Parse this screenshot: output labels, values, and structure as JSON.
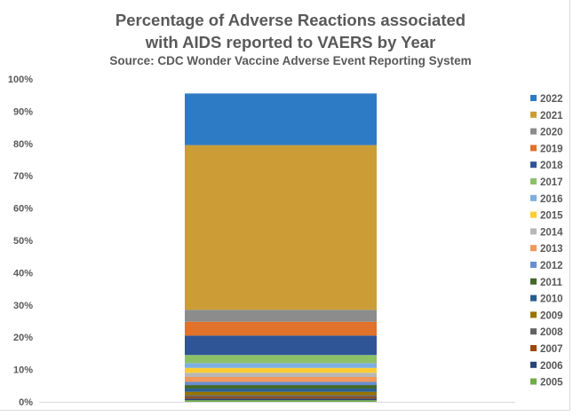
{
  "chart_data": {
    "type": "bar",
    "stacked": true,
    "percent_stacked": true,
    "title": "Percentage of Adverse Reactions associated",
    "title_line2": "with AIDS reported to VAERS by Year",
    "subtitle": "Source: CDC Wonder Vaccine Adverse Event Reporting System",
    "xlabel": "",
    "ylabel": "",
    "ylim": [
      0,
      100
    ],
    "yticks": [
      "0%",
      "10%",
      "20%",
      "30%",
      "40%",
      "50%",
      "60%",
      "70%",
      "80%",
      "90%",
      "100%"
    ],
    "grid": false,
    "legend_position": "right",
    "categories": [
      ""
    ],
    "series": [
      {
        "name": "2005",
        "values": [
          0.5
        ],
        "color": "#70ad47"
      },
      {
        "name": "2006",
        "values": [
          0.5
        ],
        "color": "#264478"
      },
      {
        "name": "2007",
        "values": [
          0.5
        ],
        "color": "#9e480e"
      },
      {
        "name": "2008",
        "values": [
          0.6
        ],
        "color": "#636363"
      },
      {
        "name": "2009",
        "values": [
          1.0
        ],
        "color": "#997300"
      },
      {
        "name": "2010",
        "values": [
          1.0
        ],
        "color": "#255e91"
      },
      {
        "name": "2011",
        "values": [
          1.1
        ],
        "color": "#43682b"
      },
      {
        "name": "2012",
        "values": [
          1.0
        ],
        "color": "#698ed0"
      },
      {
        "name": "2013",
        "values": [
          1.5
        ],
        "color": "#f1975a"
      },
      {
        "name": "2014",
        "values": [
          1.3
        ],
        "color": "#b7b7b7"
      },
      {
        "name": "2015",
        "values": [
          1.5
        ],
        "color": "#ffcd33"
      },
      {
        "name": "2016",
        "values": [
          1.5
        ],
        "color": "#7cafdd"
      },
      {
        "name": "2017",
        "values": [
          2.5
        ],
        "color": "#8cc168"
      },
      {
        "name": "2018",
        "values": [
          6.0
        ],
        "color": "#2f5597"
      },
      {
        "name": "2019",
        "values": [
          4.3
        ],
        "color": "#e0722b"
      },
      {
        "name": "2020",
        "values": [
          3.7
        ],
        "color": "#8c8c8c"
      },
      {
        "name": "2021",
        "values": [
          51.0
        ],
        "color": "#cc9d37"
      },
      {
        "name": "2022",
        "values": [
          16.0
        ],
        "color": "#2e7bc5"
      }
    ]
  }
}
